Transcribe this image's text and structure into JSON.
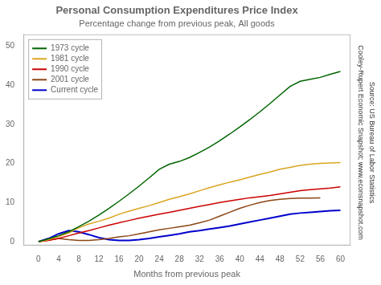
{
  "chart_data": {
    "type": "line",
    "title": "Personal Consumption Expenditures Price Index",
    "subtitle": "Percentage change from previous peak, All goods",
    "xlabel": "Months from previous peak",
    "annotations": [
      "Cooley-Rupert Economic Snapshot; www.econsnapshot.com",
      "Source: US Bureau of Labor Statistics"
    ],
    "xlim": [
      -3,
      62
    ],
    "ylim": [
      -1,
      53
    ],
    "xticks": [
      0,
      4,
      8,
      12,
      16,
      20,
      24,
      28,
      32,
      36,
      40,
      44,
      48,
      52,
      56,
      60
    ],
    "yticks": [
      0,
      10,
      20,
      30,
      40,
      50
    ],
    "grid": false,
    "legend": "upper left",
    "series": [
      {
        "name": "1973 cycle",
        "color": "#006400",
        "x": [
          0,
          2,
          4,
          6,
          8,
          10,
          12,
          14,
          16,
          18,
          20,
          22,
          24,
          26,
          28,
          30,
          32,
          34,
          36,
          38,
          40,
          42,
          44,
          46,
          48,
          50,
          52,
          54,
          56,
          58,
          60
        ],
        "values": [
          0.0,
          0.7,
          1.5,
          2.5,
          3.8,
          5.2,
          6.8,
          8.5,
          10.3,
          12.2,
          14.2,
          16.3,
          18.5,
          19.8,
          20.5,
          21.5,
          22.8,
          24.2,
          25.8,
          27.5,
          29.3,
          31.2,
          33.2,
          35.3,
          37.5,
          39.7,
          41.0,
          41.5,
          42.0,
          42.8,
          43.5
        ]
      },
      {
        "name": "1981 cycle",
        "color": "#DAA520",
        "x": [
          0,
          2,
          4,
          6,
          8,
          10,
          12,
          14,
          16,
          18,
          20,
          22,
          24,
          26,
          28,
          30,
          32,
          34,
          36,
          38,
          40,
          42,
          44,
          46,
          48,
          50,
          52,
          54,
          56,
          58,
          60
        ],
        "values": [
          0.0,
          0.5,
          1.3,
          2.2,
          3.5,
          4.5,
          5.2,
          6.0,
          7.0,
          7.8,
          8.5,
          9.2,
          10.0,
          10.8,
          11.5,
          12.2,
          13.0,
          13.8,
          14.5,
          15.2,
          15.8,
          16.5,
          17.2,
          17.8,
          18.5,
          19.0,
          19.5,
          19.8,
          20.0,
          20.1,
          20.2
        ]
      },
      {
        "name": "1990 cycle",
        "color": "#CC0000",
        "x": [
          0,
          2,
          4,
          6,
          8,
          10,
          12,
          14,
          16,
          18,
          20,
          22,
          24,
          26,
          28,
          30,
          32,
          34,
          36,
          38,
          40,
          42,
          44,
          46,
          48,
          50,
          52,
          54,
          56,
          58,
          60
        ],
        "values": [
          0.0,
          0.3,
          0.8,
          1.5,
          2.2,
          2.8,
          3.5,
          4.2,
          4.8,
          5.4,
          6.0,
          6.5,
          7.0,
          7.5,
          8.0,
          8.5,
          9.0,
          9.5,
          10.0,
          10.4,
          10.8,
          11.2,
          11.5,
          11.8,
          12.2,
          12.6,
          13.0,
          13.3,
          13.5,
          13.7,
          14.0
        ]
      },
      {
        "name": "2001 cycle",
        "color": "#8B4513",
        "x": [
          0,
          2,
          4,
          6,
          8,
          10,
          12,
          14,
          16,
          18,
          20,
          22,
          24,
          26,
          28,
          30,
          32,
          34,
          36,
          38,
          40,
          42,
          44,
          46,
          48,
          50,
          52,
          54,
          56
        ],
        "values": [
          0.0,
          0.4,
          0.8,
          0.5,
          0.3,
          0.3,
          0.5,
          0.8,
          1.2,
          1.5,
          2.0,
          2.5,
          3.0,
          3.4,
          3.8,
          4.2,
          4.8,
          5.5,
          6.5,
          7.5,
          8.5,
          9.3,
          10.0,
          10.5,
          10.8,
          11.0,
          11.1,
          11.1,
          11.2
        ]
      },
      {
        "name": "Current cycle",
        "color": "#0000CD",
        "x": [
          0,
          2,
          4,
          6,
          8,
          10,
          12,
          14,
          16,
          18,
          20,
          22,
          24,
          26,
          28,
          30,
          32,
          34,
          36,
          38,
          40,
          42,
          44,
          46,
          48,
          50,
          52,
          54,
          56,
          58,
          60
        ],
        "values": [
          0.0,
          0.8,
          2.0,
          2.8,
          2.5,
          1.8,
          1.0,
          0.5,
          0.3,
          0.3,
          0.5,
          0.8,
          1.2,
          1.6,
          2.0,
          2.5,
          2.8,
          3.2,
          3.6,
          4.0,
          4.5,
          5.0,
          5.5,
          6.0,
          6.5,
          7.0,
          7.3,
          7.5,
          7.7,
          7.9,
          8.0
        ]
      }
    ]
  }
}
